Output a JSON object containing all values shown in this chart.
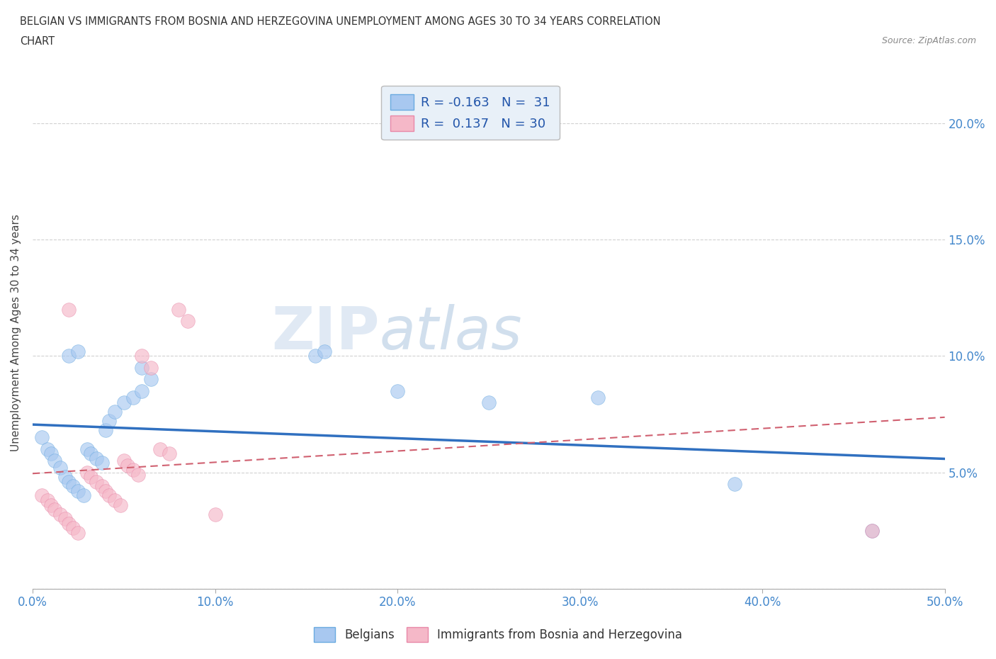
{
  "title_line1": "BELGIAN VS IMMIGRANTS FROM BOSNIA AND HERZEGOVINA UNEMPLOYMENT AMONG AGES 30 TO 34 YEARS CORRELATION",
  "title_line2": "CHART",
  "source": "Source: ZipAtlas.com",
  "ylabel": "Unemployment Among Ages 30 to 34 years",
  "xlim": [
    0.0,
    0.5
  ],
  "ylim": [
    0.0,
    0.22
  ],
  "xticks": [
    0.0,
    0.1,
    0.2,
    0.3,
    0.4,
    0.5
  ],
  "xticklabels": [
    "0.0%",
    "10.0%",
    "20.0%",
    "30.0%",
    "40.0%",
    "50.0%"
  ],
  "yticks_left": [
    0.0,
    0.05,
    0.1,
    0.15,
    0.2
  ],
  "ytick_left_labels": [
    "",
    "",
    "",
    "",
    ""
  ],
  "yticks_right": [
    0.05,
    0.1,
    0.15,
    0.2
  ],
  "ytick_right_labels": [
    "5.0%",
    "10.0%",
    "15.0%",
    "20.0%"
  ],
  "belgian_color": "#a8c8f0",
  "belgian_edge_color": "#6aaae0",
  "bosnian_color": "#f5b8c8",
  "bosnian_edge_color": "#e888a8",
  "belgian_line_color": "#3070c0",
  "bosnian_line_color": "#d06070",
  "R_belgian": -0.163,
  "N_belgian": 31,
  "R_bosnian": 0.137,
  "N_bosnian": 30,
  "watermark_zip": "ZIP",
  "watermark_atlas": "atlas",
  "grid_color": "#cccccc",
  "background_color": "#ffffff",
  "legend_box_color": "#e8f0f8",
  "belgians_x": [
    0.005,
    0.008,
    0.01,
    0.012,
    0.015,
    0.018,
    0.02,
    0.022,
    0.025,
    0.028,
    0.03,
    0.032,
    0.035,
    0.038,
    0.04,
    0.042,
    0.045,
    0.05,
    0.055,
    0.06,
    0.02,
    0.025,
    0.06,
    0.065,
    0.155,
    0.16,
    0.2,
    0.25,
    0.31,
    0.385,
    0.46
  ],
  "belgians_y": [
    0.065,
    0.06,
    0.058,
    0.055,
    0.052,
    0.048,
    0.046,
    0.044,
    0.042,
    0.04,
    0.06,
    0.058,
    0.056,
    0.054,
    0.068,
    0.072,
    0.076,
    0.08,
    0.082,
    0.085,
    0.1,
    0.102,
    0.095,
    0.09,
    0.1,
    0.102,
    0.085,
    0.08,
    0.082,
    0.045,
    0.025
  ],
  "bosnians_x": [
    0.005,
    0.008,
    0.01,
    0.012,
    0.015,
    0.018,
    0.02,
    0.022,
    0.025,
    0.03,
    0.032,
    0.035,
    0.038,
    0.04,
    0.042,
    0.045,
    0.048,
    0.05,
    0.052,
    0.055,
    0.058,
    0.02,
    0.06,
    0.065,
    0.07,
    0.075,
    0.08,
    0.085,
    0.1,
    0.46
  ],
  "bosnians_y": [
    0.04,
    0.038,
    0.036,
    0.034,
    0.032,
    0.03,
    0.028,
    0.026,
    0.024,
    0.05,
    0.048,
    0.046,
    0.044,
    0.042,
    0.04,
    0.038,
    0.036,
    0.055,
    0.053,
    0.051,
    0.049,
    0.12,
    0.1,
    0.095,
    0.06,
    0.058,
    0.12,
    0.115,
    0.032,
    0.025
  ]
}
